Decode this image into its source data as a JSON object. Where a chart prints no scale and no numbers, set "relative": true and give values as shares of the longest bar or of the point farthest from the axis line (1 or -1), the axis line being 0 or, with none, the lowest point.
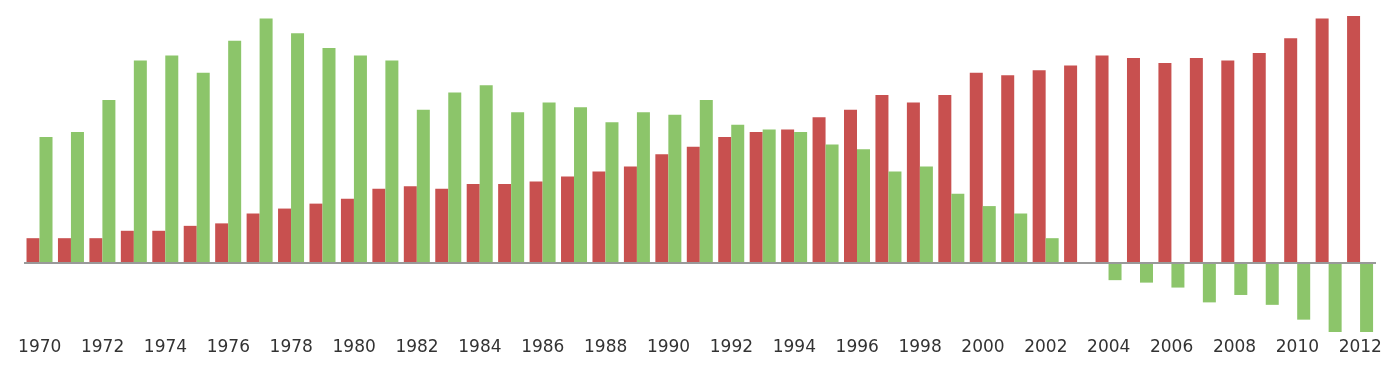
{
  "chart_data": {
    "type": "bar",
    "relative": true,
    "legend": false,
    "grid": false,
    "categories": [
      "1970",
      null,
      "1972",
      null,
      "1974",
      null,
      "1976",
      null,
      "1978",
      null,
      "1980",
      null,
      "1982",
      null,
      "1984",
      null,
      "1986",
      null,
      "1988",
      null,
      "1990",
      null,
      "1992",
      null,
      "1994",
      null,
      "1996",
      null,
      "1998",
      null,
      "2000",
      null,
      "2002",
      null,
      "2004",
      null,
      "2006",
      null,
      "2008",
      null,
      "2010",
      null,
      "2012"
    ],
    "series": [
      {
        "color": "#c8504f",
        "values": [
          0.1,
          0.1,
          0.1,
          0.13,
          0.13,
          0.15,
          0.16,
          0.2,
          0.22,
          0.24,
          0.26,
          0.3,
          0.31,
          0.3,
          0.32,
          0.32,
          0.33,
          0.35,
          0.37,
          0.39,
          0.44,
          0.47,
          0.51,
          0.53,
          0.54,
          0.59,
          0.62,
          0.68,
          0.65,
          0.68,
          0.77,
          0.76,
          0.78,
          0.8,
          0.84,
          0.83,
          0.81,
          0.83,
          0.82,
          0.85,
          0.91,
          0.99,
          1.0
        ]
      },
      {
        "color": "#8cc56a",
        "values": [
          0.51,
          0.53,
          0.66,
          0.82,
          0.84,
          0.77,
          0.9,
          0.99,
          0.93,
          0.87,
          0.84,
          0.82,
          0.62,
          0.69,
          0.72,
          0.61,
          0.65,
          0.63,
          0.57,
          0.61,
          0.6,
          0.66,
          0.56,
          0.54,
          0.53,
          0.48,
          0.46,
          0.37,
          0.39,
          0.28,
          0.23,
          0.2,
          0.1,
          null,
          -0.07,
          -0.08,
          -0.1,
          -0.16,
          -0.13,
          -0.17,
          -0.23,
          -0.28,
          -0.28
        ]
      }
    ]
  }
}
